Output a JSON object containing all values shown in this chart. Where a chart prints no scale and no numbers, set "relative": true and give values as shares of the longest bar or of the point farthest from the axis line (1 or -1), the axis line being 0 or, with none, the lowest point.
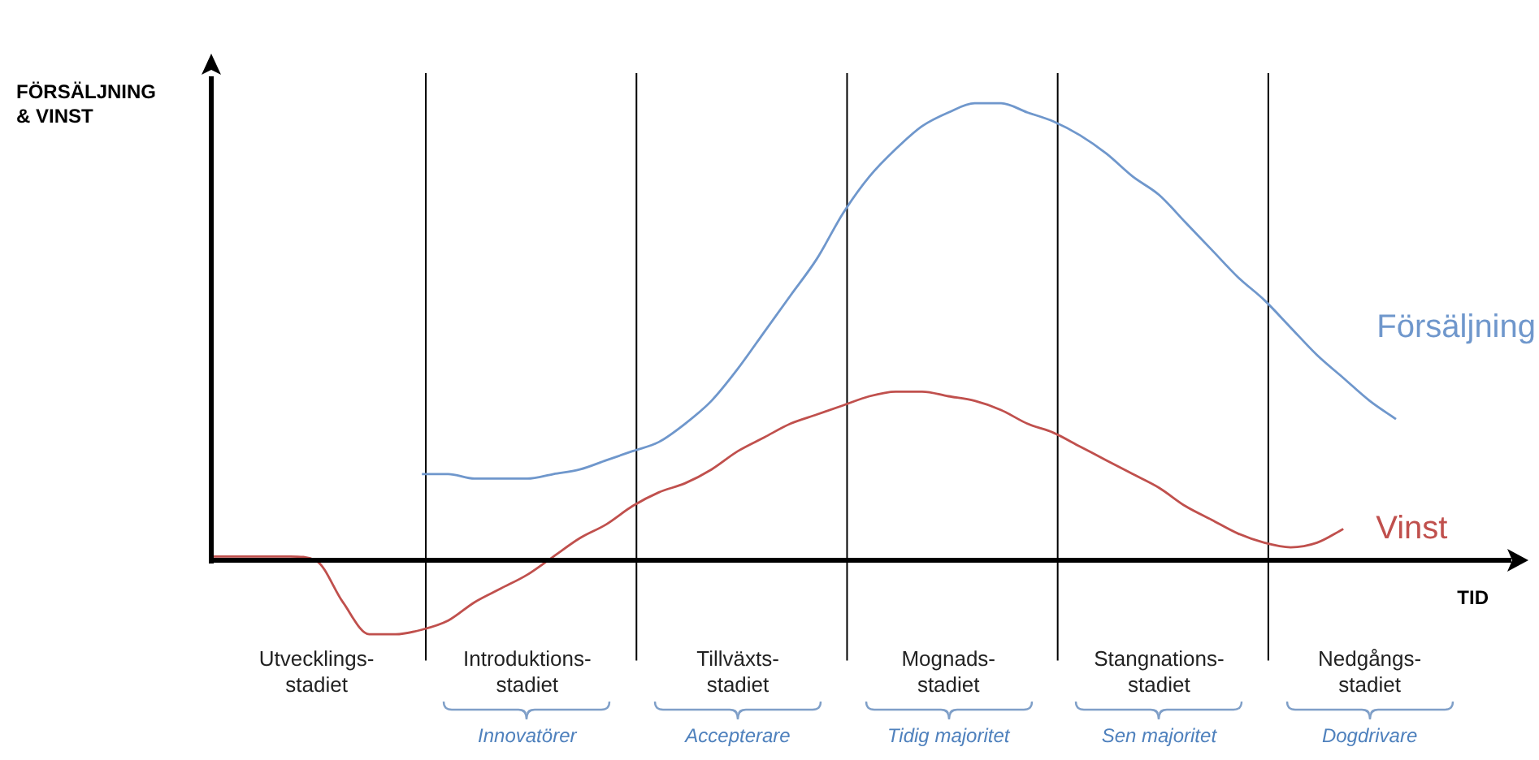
{
  "chart_data": {
    "type": "line",
    "xlabel": "TID",
    "ylabel": "FÖRSÄLJNING & VINST",
    "relative": true,
    "categories": [
      null,
      null,
      null,
      null,
      "Utvecklings-\nstadiet",
      null,
      null,
      null,
      null,
      null,
      null,
      null,
      "Introduktions-\nstadiet",
      null,
      null,
      null,
      null,
      null,
      null,
      null,
      "Tillväxts-\nstadiet",
      null,
      null,
      null,
      null,
      null,
      null,
      null,
      "Mognads-\nstadiet",
      null,
      null,
      null,
      null,
      null,
      null,
      null,
      "Stangnations-\nstadiet",
      null,
      null,
      null,
      null,
      null,
      null,
      null,
      "Nedgångs-\nstadiet",
      null,
      null,
      null,
      null,
      null,
      null
    ],
    "series": [
      {
        "name": "Försäljning",
        "color": "#6f97cc",
        "values": [
          null,
          null,
          null,
          null,
          null,
          null,
          null,
          null,
          0.19,
          0.19,
          0.18,
          0.18,
          0.18,
          0.19,
          0.2,
          0.22,
          0.24,
          0.26,
          0.3,
          0.35,
          0.42,
          0.5,
          0.58,
          0.66,
          0.76,
          0.84,
          0.9,
          0.95,
          0.98,
          1.0,
          1.0,
          0.98,
          0.96,
          0.93,
          0.89,
          0.84,
          0.8,
          0.74,
          0.68,
          0.62,
          0.57,
          0.51,
          0.45,
          0.4,
          0.35,
          0.31,
          null,
          null,
          null,
          null,
          null
        ]
      },
      {
        "name": "Vinst",
        "color": "#c0504d",
        "values": [
          0.01,
          0.01,
          0.01,
          0.01,
          0.0,
          -0.09,
          -0.16,
          -0.16,
          -0.15,
          -0.13,
          -0.09,
          -0.06,
          -0.03,
          0.01,
          0.05,
          0.08,
          0.12,
          0.15,
          0.17,
          0.2,
          0.24,
          0.27,
          0.3,
          0.32,
          0.34,
          0.36,
          0.37,
          0.37,
          0.36,
          0.35,
          0.33,
          0.3,
          0.28,
          0.25,
          0.22,
          0.19,
          0.16,
          0.12,
          0.09,
          0.06,
          0.04,
          0.03,
          0.04,
          0.07,
          null,
          null,
          null,
          null,
          null,
          null,
          null
        ]
      }
    ],
    "annotations": [
      "Innovatörer",
      "Accepterare",
      "Tidig majoritet",
      "Sen majoritet",
      "Dogdrivare"
    ],
    "legend": false,
    "marker": "none",
    "line_style": "solid"
  }
}
